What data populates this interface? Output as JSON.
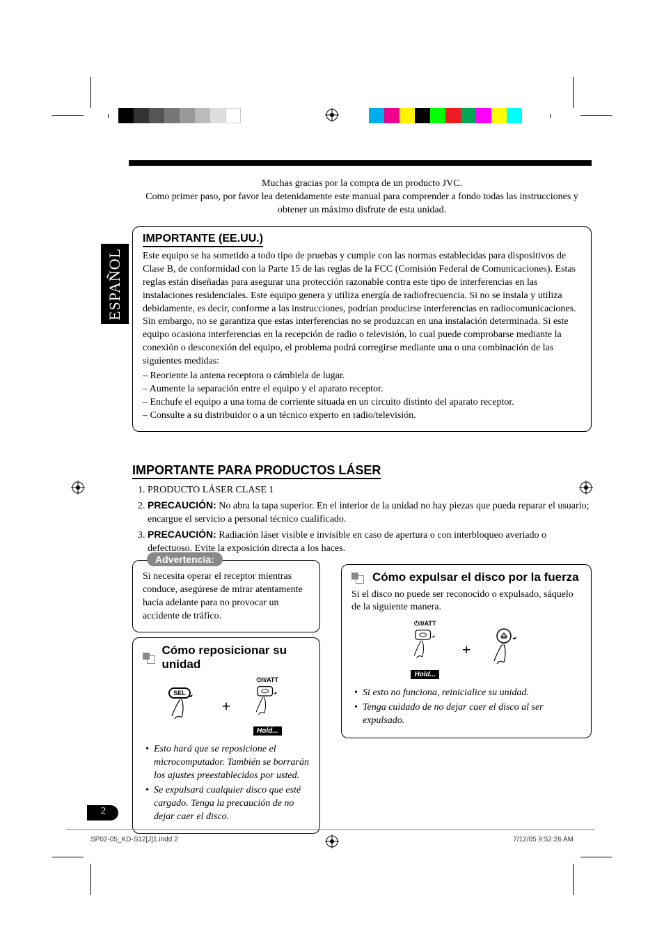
{
  "language_tab": "ESPAÑOL",
  "intro": {
    "line1": "Muchas gracias por la compra de un producto JVC.",
    "line2": "Como primer paso, por favor lea detenidamente este manual para comprender a fondo todas las instrucciones y obtener un máximo disfrute de esta unidad."
  },
  "color_bars_left": [
    "#000000",
    "#333333",
    "#555555",
    "#777777",
    "#999999",
    "#bbbbbb",
    "#dddddd",
    "#ffffff"
  ],
  "color_bars_right": [
    "#00aeef",
    "#ec008c",
    "#fff200",
    "#000000",
    "#00ff00",
    "#ed1c24",
    "#00a651",
    "#ff00ff",
    "#ffff00",
    "#00ffff"
  ],
  "importante": {
    "title": "IMPORTANTE (EE.UU.)",
    "body": "Este equipo se ha sometido a todo tipo de pruebas y cumple con las normas establecidas para dispositivos de Clase B, de conformidad con la Parte 15 de las reglas de la FCC (Comisión Federal de Comunicaciones). Estas reglas están diseñadas para asegurar una protección razonable contra este tipo de interferencias en las instalaciones residenciales. Este equipo genera y utiliza energía de radiofrecuencia. Si no se instala y utiliza debidamente, es decir, conforme a las instrucciones, podrían producirse interferencias en radiocomunicaciones. Sin embargo, no se garantiza que estas interferencias no se produzcan en una instalación determinada. Si este equipo ocasiona interferencias en la recepción de radio o televisión, lo cual puede comprobarse mediante la conexión o desconexión del equipo, el problema podrá corregirse mediante una o una combinación de las siguientes medidas:",
    "bullets": [
      "– Reoriente la antena receptora o cámbiela de lugar.",
      "– Aumente la separación entre el equipo y el aparato receptor.",
      "– Enchufe el equipo a una toma de corriente situada en un circuito distinto del aparato receptor.",
      "– Consulte a su distribuidor o a un técnico experto en radio/televisión."
    ]
  },
  "laser": {
    "title": "IMPORTANTE PARA PRODUCTOS LÁSER",
    "item1": "PRODUCTO LÁSER CLASE 1",
    "item2_bold": "PRECAUCIÓN:",
    "item2_rest": " No abra la tapa superior. En el interior de la unidad no hay piezas que pueda reparar el usuario; encargue el servicio a personal técnico cualificado.",
    "item3_bold": "PRECAUCIÓN:",
    "item3_rest": " Radiación láser visible e invisible en caso de apertura o con interbloqueo averiado o defectuoso. Evite la exposición directa a los haces."
  },
  "advertencia": {
    "badge": "Advertencia:",
    "body": "Si necesita operar el receptor mientras conduce, asegúrese de mirar atentamente hacia adelante para no provocar un accidente de tráfico."
  },
  "reposicionar": {
    "title": "Cómo reposicionar su unidad",
    "button1_label": "SEL",
    "button2_label": "⏻/I/ATT",
    "hold_label": "Hold...",
    "notes": [
      "Esto hará que se reposicione el microcomputador. También se borrarán los ajustes preestablecidos por usted.",
      "Se expulsará cualquier disco que esté cargado. Tenga la precaución de no dejar caer el disco."
    ]
  },
  "expulsar": {
    "title": "Cómo expulsar el disco por la fuerza",
    "intro": "Si el disco no puede ser reconocido o expulsado, sáquelo de la siguiente manera.",
    "button1_label": "⏻/I/ATT",
    "button2_label": "⏏",
    "hold_label": "Hold...",
    "notes": [
      "Si esto no funciona, reinicialice su unidad.",
      "Tenga cuidado de no dejar caer el disco al ser expulsado."
    ]
  },
  "page_number": "2",
  "footer": {
    "left": "SP02-05_KD-S12[J]1.indd   2",
    "right": "7/12/05   9:52:26 AM"
  }
}
